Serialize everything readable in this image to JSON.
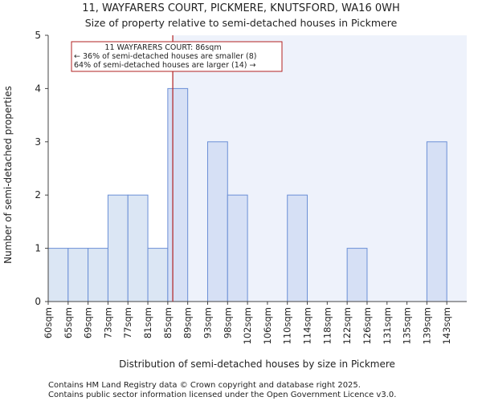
{
  "chart_data": {
    "type": "bar",
    "title": "11, WAYFARERS COURT, PICKMERE, KNUTSFORD, WA16 0WH",
    "subtitle": "Size of property relative to semi-detached houses in Pickmere",
    "xlabel": "Distribution of semi-detached houses by size in Pickmere",
    "ylabel": "Number of semi-detached properties",
    "categories": [
      "60sqm",
      "65sqm",
      "69sqm",
      "73sqm",
      "77sqm",
      "81sqm",
      "85sqm",
      "89sqm",
      "93sqm",
      "98sqm",
      "102sqm",
      "106sqm",
      "110sqm",
      "114sqm",
      "118sqm",
      "122sqm",
      "126sqm",
      "131sqm",
      "135sqm",
      "139sqm",
      "143sqm"
    ],
    "values": [
      1,
      1,
      1,
      2,
      2,
      1,
      4,
      0,
      3,
      2,
      0,
      0,
      2,
      0,
      0,
      1,
      0,
      0,
      0,
      3,
      0
    ],
    "ylim": [
      0,
      5
    ],
    "yticks": [
      0,
      1,
      2,
      3,
      4,
      5
    ],
    "grid": false,
    "marker": {
      "value_sqm": 86,
      "color": "#b22222"
    },
    "annotation": {
      "line1": "11 WAYFARERS COURT: 86sqm",
      "line2": "← 36% of semi-detached houses are smaller (8)",
      "line3": "64% of semi-detached houses are larger (14) →",
      "border_color": "#b22222"
    },
    "colors": {
      "left_bar": "#dbe6f4",
      "right_bar": "#d6e0f5",
      "right_bg": "#eef2fb",
      "bar_edge": "#6b8fd6"
    }
  },
  "footer": {
    "line1": "Contains HM Land Registry data © Crown copyright and database right 2025.",
    "line2": "Contains public sector information licensed under the Open Government Licence v3.0."
  }
}
